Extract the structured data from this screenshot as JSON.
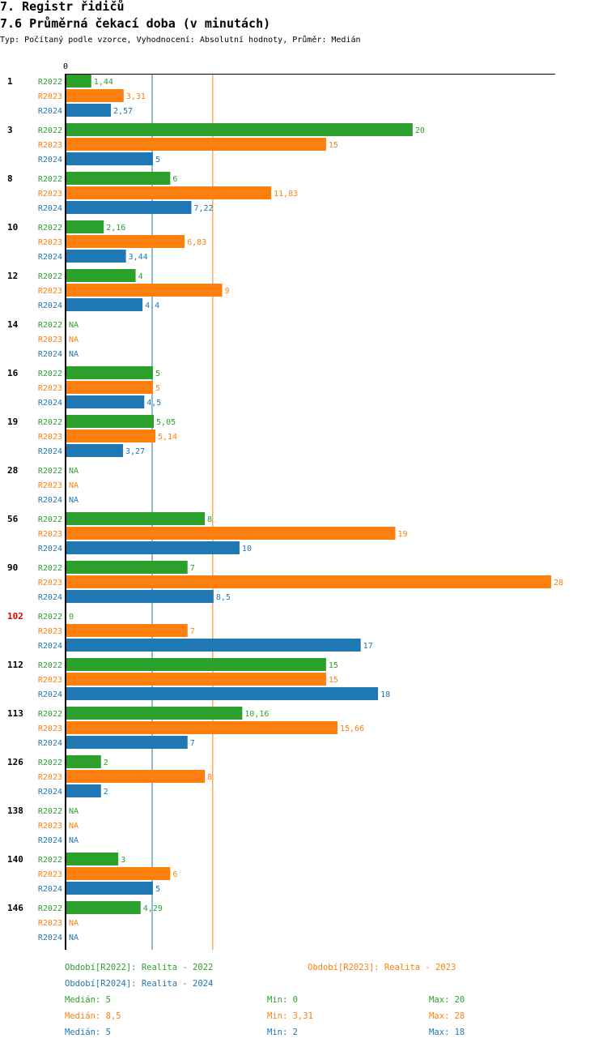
{
  "header": {
    "section_title": "7. Registr řidičů",
    "chart_title": "7.6 Průměrná čekací doba (v minutách)",
    "subtitle": "Typ: Počítaný podle vzorce, Vyhodnocení: Absolutní hodnoty, Průměr: Medián"
  },
  "colors": {
    "R2022": "#2ca02c",
    "R2023": "#ff7f0e",
    "R2024": "#1f77b4",
    "highlight": "#e00000"
  },
  "chart_data": {
    "type": "bar",
    "orientation": "horizontal",
    "title": "7.6 Průměrná čekací doba (v minutách)",
    "xlabel": "",
    "ylabel": "",
    "x_tick_labels": [
      "0"
    ],
    "xlim": [
      0,
      28
    ],
    "grid": false,
    "legend_position": "bottom",
    "categories": [
      "1",
      "3",
      "8",
      "10",
      "12",
      "14",
      "16",
      "19",
      "28",
      "56",
      "90",
      "102",
      "112",
      "113",
      "126",
      "138",
      "140",
      "146"
    ],
    "highlighted_categories": [
      "102"
    ],
    "series": [
      {
        "name": "R2022",
        "values": [
          1.44,
          20,
          6,
          2.16,
          4,
          null,
          5,
          5.05,
          null,
          8,
          7,
          0,
          15,
          10.16,
          2,
          null,
          3,
          4.29
        ],
        "labels": [
          "1,44",
          "20",
          "6",
          "2,16",
          "4",
          "NA",
          "5",
          "5,05",
          "NA",
          "8",
          "7",
          "0",
          "15",
          "10,16",
          "2",
          "NA",
          "3",
          "4,29"
        ]
      },
      {
        "name": "R2023",
        "values": [
          3.31,
          15,
          11.83,
          6.83,
          9,
          null,
          5,
          5.14,
          null,
          19,
          28,
          7,
          15,
          15.66,
          8,
          null,
          6,
          null
        ],
        "labels": [
          "3,31",
          "15",
          "11,83",
          "6,83",
          "9",
          "NA",
          "5",
          "5,14",
          "NA",
          "19",
          "28",
          "7",
          "15",
          "15,66",
          "8",
          "NA",
          "6",
          "NA"
        ]
      },
      {
        "name": "R2024",
        "values": [
          2.57,
          5,
          7.22,
          3.44,
          4.4,
          null,
          4.5,
          3.27,
          null,
          10,
          8.5,
          17,
          18,
          7,
          2,
          null,
          5,
          null
        ],
        "labels": [
          "2,57",
          "5",
          "7,22",
          "3,44",
          "4,4",
          "NA",
          "4,5",
          "3,27",
          "NA",
          "10",
          "8,5",
          "17",
          "18",
          "7",
          "2",
          "NA",
          "5",
          "NA"
        ]
      }
    ],
    "reference_lines": [
      {
        "series": "R2024",
        "name": "Medián R2024",
        "value": 5
      },
      {
        "series": "R2023",
        "name": "Medián R2023",
        "value": 8.5
      }
    ]
  },
  "legend": {
    "periods": [
      {
        "series": "R2022",
        "text": "Období[R2022]: Realita - 2022"
      },
      {
        "series": "R2023",
        "text": "Období[R2023]: Realita - 2023"
      },
      {
        "series": "R2024",
        "text": "Období[R2024]: Realita - 2024"
      }
    ],
    "stats": [
      {
        "series": "R2022",
        "median": "Medián: 5",
        "min": "Min: 0",
        "max": "Max: 20"
      },
      {
        "series": "R2023",
        "median": "Medián: 8,5",
        "min": "Min: 3,31",
        "max": "Max: 28"
      },
      {
        "series": "R2024",
        "median": "Medián: 5",
        "min": "Min: 2",
        "max": "Max: 18"
      }
    ]
  }
}
